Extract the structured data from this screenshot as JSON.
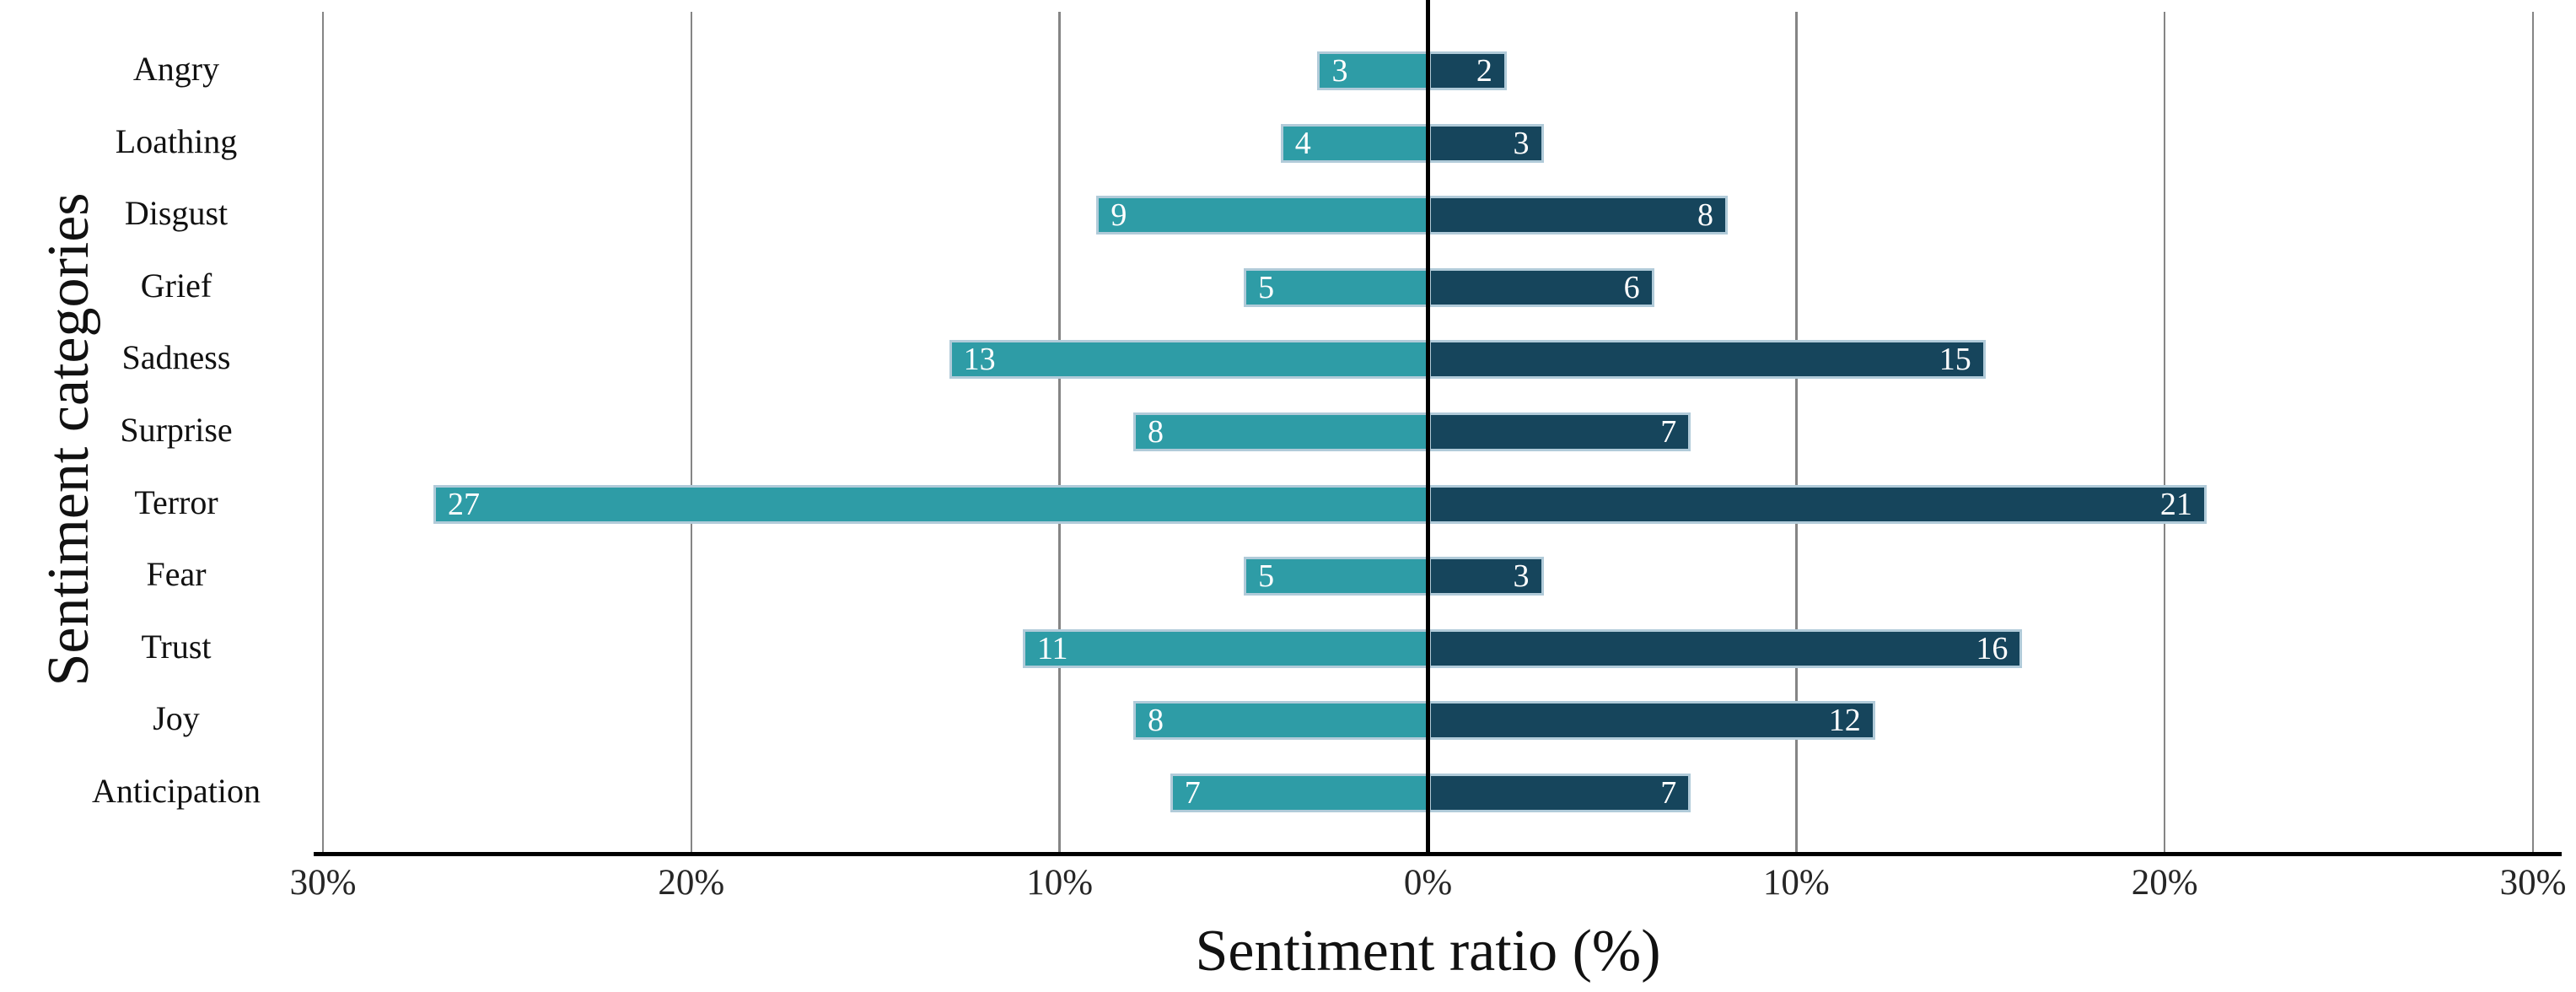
{
  "chart_data": {
    "type": "bar",
    "variant": "diverging-horizontal",
    "title": "",
    "xlabel": "Sentiment ratio (%)",
    "ylabel": "Sentiment categories",
    "categories": [
      "Angry",
      "Loathing",
      "Disgust",
      "Grief",
      "Sadness",
      "Surprise",
      "Terror",
      "Fear",
      "Trust",
      "Joy",
      "Anticipation"
    ],
    "series": [
      {
        "name": "left",
        "side": "left",
        "color": "#2e9ca6",
        "values": [
          3,
          4,
          9,
          5,
          13,
          8,
          27,
          5,
          11,
          8,
          7
        ]
      },
      {
        "name": "right",
        "side": "right",
        "color": "#16455c",
        "values": [
          2,
          3,
          8,
          6,
          15,
          7,
          21,
          3,
          16,
          12,
          7
        ]
      }
    ],
    "bar_value_labels": {
      "visible": true,
      "color": "#ffffff",
      "position": "inside-outer-end"
    },
    "x_ticks": [
      {
        "value": -30,
        "label": "30%"
      },
      {
        "value": -20,
        "label": "20%"
      },
      {
        "value": -10,
        "label": "10%"
      },
      {
        "value": 0,
        "label": "0%"
      },
      {
        "value": 10,
        "label": "10%"
      },
      {
        "value": 20,
        "label": "20%"
      },
      {
        "value": 30,
        "label": "30%"
      }
    ],
    "xlim": [
      -30,
      30
    ],
    "grid": true,
    "legend": "none",
    "colors": {
      "gridline": "#858585",
      "zero_axis": "#000000",
      "bottom_axis": "#000000",
      "bar_border": "#b1cbd9",
      "tick_text": "#262626",
      "label_text": "#111111"
    }
  }
}
